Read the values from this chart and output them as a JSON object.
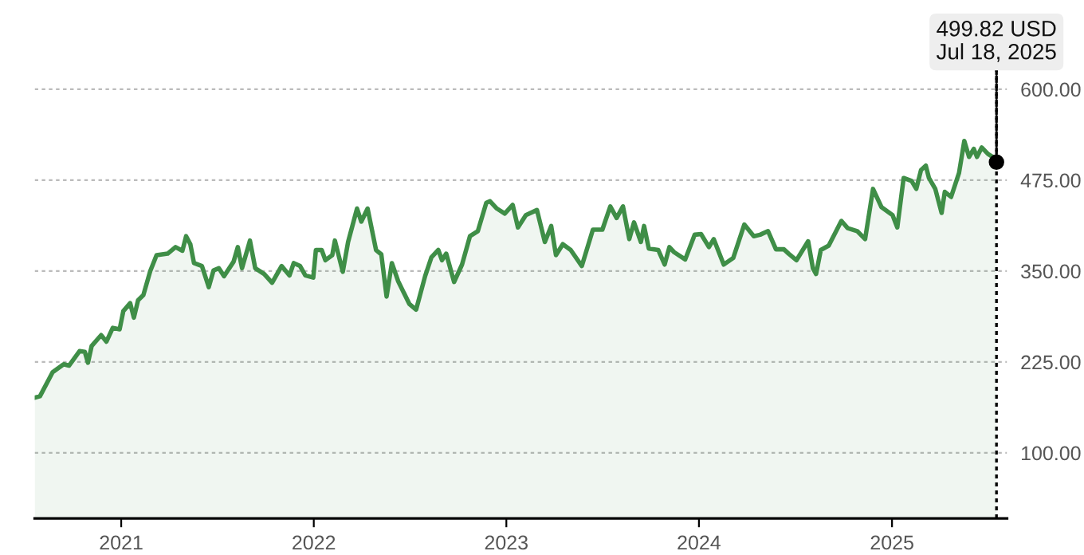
{
  "chart_data": {
    "type": "area",
    "x": [
      "2020-07-21",
      "2020-07-31",
      "2020-08-24",
      "2020-09-14",
      "2020-09-24",
      "2020-10-14",
      "2020-10-24",
      "2020-10-30",
      "2020-11-06",
      "2020-11-24",
      "2020-12-04",
      "2020-12-16",
      "2020-12-29",
      "2021-01-05",
      "2021-01-18",
      "2021-01-25",
      "2021-02-02",
      "2021-02-12",
      "2021-02-25",
      "2021-03-09",
      "2021-03-30",
      "2021-04-14",
      "2021-04-27",
      "2021-05-04",
      "2021-05-12",
      "2021-05-19",
      "2021-06-03",
      "2021-06-16",
      "2021-06-25",
      "2021-07-05",
      "2021-07-15",
      "2021-08-02",
      "2021-08-10",
      "2021-08-18",
      "2021-09-02",
      "2021-09-12",
      "2021-09-29",
      "2021-10-14",
      "2021-11-01",
      "2021-11-16",
      "2021-11-24",
      "2021-12-06",
      "2021-12-16",
      "2021-12-31",
      "2022-01-05",
      "2022-01-16",
      "2022-01-23",
      "2022-02-05",
      "2022-02-10",
      "2022-02-25",
      "2022-03-07",
      "2022-03-24",
      "2022-04-01",
      "2022-04-13",
      "2022-04-29",
      "2022-05-09",
      "2022-05-19",
      "2022-05-29",
      "2022-06-10",
      "2022-07-01",
      "2022-07-14",
      "2022-07-31",
      "2022-08-12",
      "2022-08-25",
      "2022-09-01",
      "2022-09-09",
      "2022-09-24",
      "2022-10-09",
      "2022-10-24",
      "2022-11-08",
      "2022-11-24",
      "2022-12-01",
      "2022-12-14",
      "2022-12-29",
      "2023-01-13",
      "2023-01-23",
      "2023-02-07",
      "2023-02-28",
      "2023-03-15",
      "2023-03-27",
      "2023-04-05",
      "2023-04-18",
      "2023-05-03",
      "2023-05-24",
      "2023-06-14",
      "2023-07-02",
      "2023-07-17",
      "2023-07-29",
      "2023-08-10",
      "2023-08-22",
      "2023-08-31",
      "2023-09-13",
      "2023-09-19",
      "2023-09-28",
      "2023-10-16",
      "2023-10-28",
      "2023-11-06",
      "2023-11-15",
      "2023-12-06",
      "2023-12-24",
      "2024-01-05",
      "2024-01-20",
      "2024-01-29",
      "2024-02-17",
      "2024-03-06",
      "2024-03-27",
      "2024-04-14",
      "2024-04-26",
      "2024-05-11",
      "2024-05-26",
      "2024-06-10",
      "2024-06-19",
      "2024-07-04",
      "2024-07-26",
      "2024-08-04",
      "2024-08-10",
      "2024-08-19",
      "2024-09-03",
      "2024-09-27",
      "2024-10-09",
      "2024-10-27",
      "2024-11-11",
      "2024-11-26",
      "2024-12-12",
      "2025-01-02",
      "2025-01-11",
      "2025-01-23",
      "2025-02-07",
      "2025-02-16",
      "2025-02-25",
      "2025-03-06",
      "2025-03-12",
      "2025-03-24",
      "2025-04-05",
      "2025-04-11",
      "2025-04-23",
      "2025-05-08",
      "2025-05-18",
      "2025-05-27",
      "2025-06-05",
      "2025-06-11",
      "2025-06-20",
      "2025-07-02",
      "2025-07-11",
      "2025-07-18"
    ],
    "series": [
      {
        "color": "#3f8e47",
        "values": [
          176,
          178,
          211,
          222,
          220,
          240,
          239,
          224,
          247,
          262,
          253,
          272,
          270,
          295,
          306,
          286,
          310,
          317,
          350,
          372,
          374,
          383,
          378,
          398,
          387,
          361,
          357,
          328,
          351,
          354,
          343,
          363,
          383,
          354,
          392,
          354,
          346,
          334,
          357,
          344,
          361,
          357,
          344,
          341,
          379,
          379,
          365,
          372,
          392,
          349,
          390,
          436,
          418,
          436,
          379,
          373,
          315,
          361,
          336,
          305,
          297,
          343,
          369,
          379,
          365,
          374,
          335,
          359,
          398,
          405,
          444,
          446,
          436,
          429,
          441,
          410,
          427,
          434,
          390,
          412,
          372,
          387,
          379,
          357,
          407,
          407,
          439,
          423,
          439,
          394,
          417,
          390,
          412,
          381,
          379,
          359,
          383,
          376,
          366,
          400,
          401,
          383,
          394,
          359,
          368,
          414,
          398,
          400,
          405,
          380,
          380,
          374,
          365,
          391,
          354,
          346,
          379,
          385,
          419,
          409,
          405,
          394,
          463,
          438,
          427,
          410,
          478,
          474,
          463,
          489,
          495,
          478,
          463,
          430,
          459,
          452,
          485,
          529,
          507,
          518,
          507,
          520,
          511,
          507,
          499.82
        ]
      }
    ],
    "xlim": [
      "2020-07-21",
      "2025-08-07"
    ],
    "xticks": [
      {
        "value": "2021-01-01",
        "label": "2021"
      },
      {
        "value": "2022-01-01",
        "label": "2022"
      },
      {
        "value": "2023-01-01",
        "label": "2023"
      },
      {
        "value": "2024-01-01",
        "label": "2024"
      },
      {
        "value": "2025-01-01",
        "label": "2025"
      }
    ],
    "ylim": [
      10,
      635
    ],
    "yticks": [
      {
        "value": 100,
        "label": "100.00"
      },
      {
        "value": 225,
        "label": "225.00"
      },
      {
        "value": 350,
        "label": "350.00"
      },
      {
        "value": 475,
        "label": "475.00"
      },
      {
        "value": 600,
        "label": "600.00"
      }
    ],
    "grid": "y",
    "ref_lines": [
      {
        "axis": "x",
        "value": "2025-07-18",
        "color": "#000000",
        "line_style": "dotted"
      }
    ],
    "annotations": [
      {
        "text": "499.82 USD\nJul 18, 2025",
        "x": "2025-07-18",
        "y": 499.82
      }
    ]
  }
}
